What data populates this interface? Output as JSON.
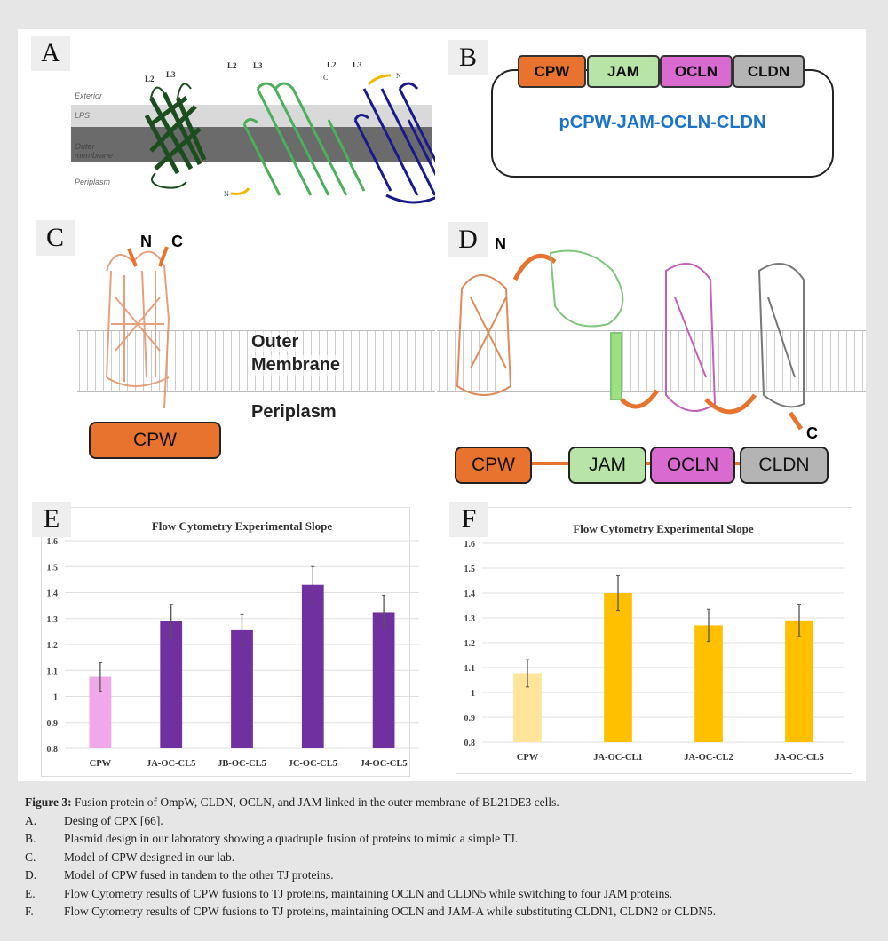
{
  "panels": {
    "A": {
      "label": "A",
      "layers": [
        "Exterior",
        "LPS",
        "Outer membrane",
        "Periplasm"
      ],
      "loops": [
        "L2",
        "L3"
      ],
      "termini": [
        "N",
        "C"
      ],
      "colors": [
        "#1b4d1e",
        "#4caf5a",
        "#1a1a8c"
      ]
    },
    "B": {
      "label": "B",
      "genes": [
        {
          "name": "CPW",
          "color": "#e8732f"
        },
        {
          "name": "JAM",
          "color": "#b8e4a8"
        },
        {
          "name": "OCLN",
          "color": "#d96ad0"
        },
        {
          "name": "CLDN",
          "color": "#b4b4b4"
        }
      ],
      "plasmid": "pCPW-JAM-OCLN-CLDN",
      "plasmid_color": "#1a73c7"
    },
    "C": {
      "label": "C",
      "n": "N",
      "c": "C",
      "outer": "Outer",
      "membrane": "Membrane",
      "periplasm": "Periplasm",
      "box": "CPW"
    },
    "D": {
      "label": "D",
      "n": "N",
      "c": "C",
      "genes": [
        "CPW",
        "JAM",
        "OCLN",
        "CLDN"
      ]
    },
    "E": {
      "label": "E"
    },
    "F": {
      "label": "F"
    }
  },
  "chart_data": [
    {
      "type": "bar",
      "title": "Flow Cytometry Experimental Slope",
      "xlabel": "",
      "ylabel": "",
      "ylim": [
        0.8,
        1.6
      ],
      "yticks": [
        "0.8",
        "0.9",
        "1",
        "1.1",
        "1.2",
        "1.3",
        "1.4",
        "1.5",
        "1.6"
      ],
      "categories": [
        "CPW",
        "JA-OC-CL5",
        "JB-OC-CL5",
        "JC-OC-CL5",
        "J4-OC-CL5"
      ],
      "values": [
        1.075,
        1.29,
        1.255,
        1.43,
        1.325
      ],
      "errors": [
        0.055,
        0.065,
        0.06,
        0.07,
        0.065
      ],
      "colors": [
        "#f0a8ea",
        "#7030a0",
        "#7030a0",
        "#7030a0",
        "#7030a0"
      ],
      "grid": true
    },
    {
      "type": "bar",
      "title": "Flow Cytometry Experimental Slope",
      "xlabel": "",
      "ylabel": "",
      "ylim": [
        0.8,
        1.6
      ],
      "yticks": [
        "0.8",
        "0.9",
        "1",
        "1.1",
        "1.2",
        "1.3",
        "1.4",
        "1.5",
        "1.6"
      ],
      "categories": [
        "CPW",
        "JA-OC-CL1",
        "JA-OC-CL2",
        "JA-OC-CL5"
      ],
      "values": [
        1.077,
        1.4,
        1.27,
        1.29
      ],
      "errors": [
        0.055,
        0.07,
        0.065,
        0.065
      ],
      "colors": [
        "#ffe599",
        "#ffc000",
        "#ffc000",
        "#ffc000"
      ],
      "grid": true
    }
  ],
  "caption": {
    "title": "Figure 3:",
    "text": " Fusion protein of OmpW, CLDN, OCLN, and JAM linked in the outer membrane of BL21DE3 cells.",
    "items": [
      {
        "k": "A.",
        "t": "Desing of CPX [66]."
      },
      {
        "k": "B.",
        "t": "Plasmid design in our laboratory showing a quadruple fusion of proteins to mimic a simple TJ."
      },
      {
        "k": "C.",
        "t": "Model of CPW designed in our lab."
      },
      {
        "k": "D.",
        "t": "Model of CPW fused in tandem to the other TJ proteins."
      },
      {
        "k": "E.",
        "t": "Flow Cytometry results of CPW fusions to TJ proteins, maintaining OCLN and CLDN5 while switching to four JAM proteins."
      },
      {
        "k": "F.",
        "t": "Flow Cytometry results of CPW fusions to TJ proteins, maintaining OCLN and JAM-A while substituting CLDN1, CLDN2 or CLDN5."
      }
    ]
  }
}
